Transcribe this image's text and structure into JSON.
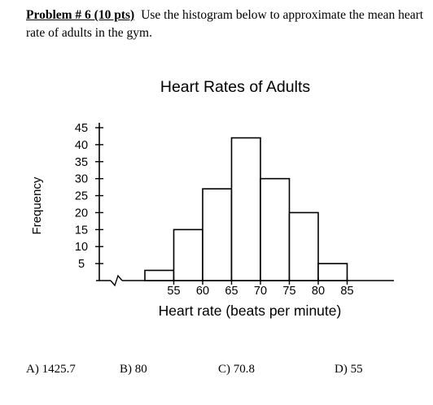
{
  "problem": {
    "number_label": "Problem # 6 (10 pts)",
    "text": "Use the histogram below to approximate the mean heart rate of adults in the gym."
  },
  "chart_data": {
    "type": "bar",
    "title": "Heart Rates of Adults",
    "xlabel": "Heart rate (beats per minute)",
    "ylabel": "Frequency",
    "x_ticks": [
      55,
      60,
      65,
      70,
      75,
      80,
      85
    ],
    "y_ticks": [
      5,
      10,
      15,
      20,
      25,
      30,
      35,
      40,
      45
    ],
    "bins": [
      {
        "start": 50,
        "end": 55,
        "value": 3
      },
      {
        "start": 55,
        "end": 60,
        "value": 15
      },
      {
        "start": 60,
        "end": 65,
        "value": 27
      },
      {
        "start": 65,
        "end": 70,
        "value": 42
      },
      {
        "start": 70,
        "end": 75,
        "value": 30
      },
      {
        "start": 75,
        "end": 80,
        "value": 20
      },
      {
        "start": 80,
        "end": 85,
        "value": 5
      }
    ],
    "xlim": [
      50,
      85
    ],
    "ylim": [
      0,
      45
    ],
    "axis_break": true,
    "grid": false
  },
  "answers": [
    {
      "label": "A) 1425.7"
    },
    {
      "label": "B) 80"
    },
    {
      "label": "C) 70.8"
    },
    {
      "label": "D) 55"
    }
  ]
}
